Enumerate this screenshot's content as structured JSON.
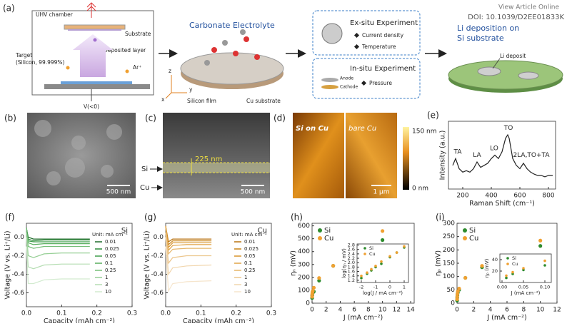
{
  "header": {
    "view_article": "View Article Online",
    "doi": "DOI: 10.1039/D2EE01833K"
  },
  "panel_a": {
    "label": "(a)",
    "uhv": "UHV chamber",
    "substrate": "Substrate",
    "deposited": "Deposited layer",
    "target_1": "Target",
    "target_2": "(Silicon, 99.999%)",
    "ar": "Ar⁺",
    "voltage": "V(<0)",
    "electrolyte": "Carbonate Electrolyte",
    "si_film": "Silicon film",
    "cu_sub": "Cu substrate",
    "exsitu": "Ex-situ Experiment",
    "current": "Current density",
    "temperature": "Temperature",
    "insitu": "In-situ Experiment",
    "anode": "Anode",
    "cathode": "Cathode",
    "pressure": "Pressure",
    "li_title_1": "Li deposition on",
    "li_title_2": "Si substrate",
    "li_deposit": "Li deposit",
    "axis_z": "z",
    "axis_y": "y",
    "axis_x": "x"
  },
  "panel_b": {
    "label": "(b)",
    "scale": "500 nm"
  },
  "panel_c": {
    "label": "(c)",
    "thickness": "225 nm",
    "si": "Si",
    "cu": "Cu",
    "scale": "500 nm"
  },
  "panel_d": {
    "label": "(d)",
    "left": "Si on Cu",
    "right": "bare Cu",
    "scale": "1 μm",
    "cbar_max": "150 nm",
    "cbar_min": "0 nm"
  },
  "chart_data": [
    {
      "type": "line",
      "panel_label": "(e)",
      "xlabel": "Raman Shift (cm⁻¹)",
      "ylabel": "Intensity (a.u.)",
      "color": "#222222",
      "x": [
        130,
        150,
        175,
        200,
        225,
        250,
        275,
        300,
        325,
        350,
        375,
        400,
        425,
        450,
        475,
        500,
        515,
        525,
        550,
        575,
        600,
        625,
        650,
        675,
        700,
        725,
        750,
        775,
        800,
        830
      ],
      "values": [
        0.35,
        0.45,
        0.3,
        0.25,
        0.27,
        0.25,
        0.3,
        0.4,
        0.32,
        0.35,
        0.38,
        0.45,
        0.5,
        0.45,
        0.55,
        0.75,
        0.8,
        0.75,
        0.45,
        0.35,
        0.3,
        0.38,
        0.3,
        0.25,
        0.22,
        0.2,
        0.2,
        0.18,
        0.2,
        0.2
      ],
      "xlim": [
        100,
        850
      ],
      "xticks": [
        200,
        400,
        600,
        800
      ],
      "ylim": [
        0,
        1
      ],
      "annotations": [
        {
          "text": "TA",
          "x": 165,
          "y": 0.55
        },
        {
          "text": "LA",
          "x": 300,
          "y": 0.5
        },
        {
          "text": "LO",
          "x": 420,
          "y": 0.6
        },
        {
          "text": "TO",
          "x": 520,
          "y": 0.9
        },
        {
          "text": "2LA,TO+TA",
          "x": 680,
          "y": 0.5
        }
      ]
    },
    {
      "type": "line",
      "panel_label": "(f)",
      "annotation": "Si",
      "legend": "center right",
      "legend_title": "Unit: mA cm⁻²",
      "xlabel": "Capacity (mAh cm⁻²)",
      "ylabel": "Voltage (V vs. Li⁺/Li)",
      "xlim": [
        0,
        0.3
      ],
      "xticks": [
        {
          "value": 0,
          "label": "0.0"
        },
        0.1,
        0.2,
        0.3
      ],
      "ylim": [
        -0.75,
        0.15
      ],
      "yticks": [
        {
          "value": 0,
          "label": "0.0"
        },
        -0.2,
        -0.4,
        -0.6
      ],
      "series": [
        {
          "name": "0.01",
          "color": "#1f6b2a",
          "x": [
            0,
            0.005,
            0.02,
            0.05,
            0.1,
            0.18
          ],
          "values": [
            0.1,
            0,
            -0.02,
            -0.02,
            -0.02,
            -0.02
          ]
        },
        {
          "name": "0.025",
          "color": "#2e8b3a",
          "x": [
            0,
            0.005,
            0.02,
            0.05,
            0.1,
            0.18
          ],
          "values": [
            0.1,
            -0.02,
            -0.04,
            -0.03,
            -0.03,
            -0.03
          ]
        },
        {
          "name": "0.05",
          "color": "#3f9e4a",
          "x": [
            0,
            0.005,
            0.02,
            0.05,
            0.1,
            0.18
          ],
          "values": [
            0.1,
            -0.04,
            -0.05,
            -0.05,
            -0.05,
            -0.05
          ]
        },
        {
          "name": "0.1",
          "color": "#58ae5e",
          "x": [
            0,
            0.005,
            0.02,
            0.05,
            0.1,
            0.18
          ],
          "values": [
            0.1,
            -0.06,
            -0.08,
            -0.07,
            -0.07,
            -0.07
          ]
        },
        {
          "name": "0.25",
          "color": "#75bf78",
          "x": [
            0,
            0.005,
            0.02,
            0.05,
            0.1,
            0.18
          ],
          "values": [
            0.1,
            -0.1,
            -0.12,
            -0.1,
            -0.1,
            -0.1
          ]
        },
        {
          "name": "1",
          "color": "#96cf95",
          "x": [
            0,
            0.005,
            0.02,
            0.05,
            0.1,
            0.18
          ],
          "values": [
            0.05,
            -0.2,
            -0.22,
            -0.18,
            -0.17,
            -0.17
          ]
        },
        {
          "name": "3",
          "color": "#b6deb3",
          "x": [
            0,
            0.005,
            0.02,
            0.05,
            0.1,
            0.18
          ],
          "values": [
            0,
            -0.32,
            -0.34,
            -0.3,
            -0.29,
            -0.29
          ]
        },
        {
          "name": "10",
          "color": "#d2ebcf",
          "x": [
            0,
            0.005,
            0.02,
            0.05,
            0.1,
            0.18
          ],
          "values": [
            -0.1,
            -0.5,
            -0.5,
            -0.46,
            -0.45,
            -0.45
          ]
        }
      ]
    },
    {
      "type": "line",
      "panel_label": "(g)",
      "annotation": "Cu",
      "legend": "center right",
      "legend_title": "Unit: mA cm⁻²",
      "xlabel": "Capacity (mAh cm⁻²)",
      "ylabel": "Voltage (V vs. Li⁺/Li)",
      "xlim": [
        0,
        0.3
      ],
      "xticks": [
        {
          "value": 0,
          "label": "0.0"
        },
        0.1,
        0.2,
        0.3
      ],
      "ylim": [
        -0.75,
        0.15
      ],
      "yticks": [
        {
          "value": 0,
          "label": "0.0"
        },
        -0.2,
        -0.4,
        -0.6
      ],
      "series": [
        {
          "name": "0.01",
          "color": "#b8720f",
          "x": [
            0,
            0.008,
            0.02,
            0.06,
            0.13
          ],
          "values": [
            0.12,
            -0.05,
            -0.02,
            -0.02,
            -0.02
          ]
        },
        {
          "name": "0.025",
          "color": "#c98216",
          "x": [
            0,
            0.008,
            0.02,
            0.06,
            0.13
          ],
          "values": [
            0.12,
            -0.08,
            -0.04,
            -0.04,
            -0.04
          ]
        },
        {
          "name": "0.05",
          "color": "#d8922a",
          "x": [
            0,
            0.008,
            0.02,
            0.06,
            0.13
          ],
          "values": [
            0.12,
            -0.11,
            -0.06,
            -0.06,
            -0.06
          ]
        },
        {
          "name": "0.1",
          "color": "#e0a447",
          "x": [
            0,
            0.008,
            0.02,
            0.06,
            0.13
          ],
          "values": [
            0.12,
            -0.14,
            -0.09,
            -0.08,
            -0.08
          ]
        },
        {
          "name": "0.25",
          "color": "#e6b569",
          "x": [
            0,
            0.008,
            0.02,
            0.06,
            0.13
          ],
          "values": [
            0.1,
            -0.18,
            -0.13,
            -0.12,
            -0.12
          ]
        },
        {
          "name": "1",
          "color": "#ecc68c",
          "x": [
            0,
            0.008,
            0.02,
            0.06,
            0.13
          ],
          "values": [
            0.05,
            -0.28,
            -0.22,
            -0.2,
            -0.2
          ]
        },
        {
          "name": "3",
          "color": "#f1d6ad",
          "x": [
            0,
            0.008,
            0.02,
            0.06,
            0.13
          ],
          "values": [
            0,
            -0.4,
            -0.33,
            -0.31,
            -0.3
          ]
        },
        {
          "name": "10",
          "color": "#f6e5cc",
          "x": [
            0,
            0.008,
            0.02,
            0.06,
            0.13
          ],
          "values": [
            -0.1,
            -0.58,
            -0.5,
            -0.48,
            -0.47
          ]
        }
      ]
    },
    {
      "type": "scatter",
      "panel_label": "(h)",
      "legend": "upper left",
      "xlabel": "J (mA cm⁻²)",
      "ylabel": "ηₙ (mV)",
      "xlim": [
        0,
        14.5
      ],
      "xticks": [
        0,
        2,
        4,
        6,
        8,
        10,
        12,
        14
      ],
      "ylim": [
        0,
        620
      ],
      "yticks": [
        0,
        100,
        200,
        300,
        400,
        500,
        600
      ],
      "series": [
        {
          "name": "Si",
          "color": "#2d8b2d",
          "x": [
            0.01,
            0.025,
            0.05,
            0.1,
            0.25,
            1,
            3,
            10
          ],
          "values": [
            40,
            60,
            70,
            80,
            90,
            175,
            290,
            490
          ]
        },
        {
          "name": "Cu",
          "color": "#f0a030",
          "x": [
            0.01,
            0.025,
            0.05,
            0.1,
            0.25,
            1,
            3,
            10
          ],
          "values": [
            50,
            70,
            85,
            95,
            120,
            195,
            290,
            560
          ]
        }
      ]
    },
    {
      "type": "scatter",
      "panel_label": "(i)",
      "legend": "upper left",
      "xlabel": "J (mA cm⁻²)",
      "ylabel": "ηₚ (mV)",
      "xlim": [
        0,
        12
      ],
      "xticks": [
        0,
        2,
        4,
        6,
        8,
        10,
        12
      ],
      "ylim": [
        0,
        300
      ],
      "yticks": [
        0,
        50,
        100,
        150,
        200,
        250,
        300
      ],
      "series": [
        {
          "name": "Si",
          "color": "#2d8b2d",
          "x": [
            0.01,
            0.025,
            0.05,
            0.1,
            0.25,
            1,
            3,
            10
          ],
          "values": [
            10,
            20,
            30,
            40,
            50,
            95,
            135,
            215
          ]
        },
        {
          "name": "Cu",
          "color": "#f0a030",
          "x": [
            0.01,
            0.025,
            0.05,
            0.1,
            0.25,
            1,
            3,
            10
          ],
          "values": [
            15,
            25,
            35,
            45,
            55,
            95,
            140,
            235
          ]
        }
      ]
    },
    {
      "type": "scatter",
      "legend": "upper left",
      "xlabel": "log(J / mA cm⁻²)",
      "ylabel": "log(ηₙ / mV)",
      "xlim": [
        -2.3,
        1.3
      ],
      "xticks": [
        -2,
        -1,
        0,
        1
      ],
      "ylim": [
        1.1,
        2.85
      ],
      "yticks": [
        1.2,
        1.4,
        1.6,
        1.8,
        {
          "value": 2,
          "label": "2.0"
        },
        2.2,
        2.4,
        2.6,
        2.8
      ],
      "series": [
        {
          "name": "Si",
          "color": "#2d8b2d",
          "x": [
            -2,
            -1.6,
            -1.3,
            -1,
            -0.6,
            0,
            0.48,
            1
          ],
          "values": [
            1.3,
            1.5,
            1.65,
            1.8,
            1.95,
            2.25,
            2.46,
            2.69
          ]
        },
        {
          "name": "Cu",
          "color": "#f0a030",
          "x": [
            -2,
            -1.6,
            -1.3,
            -1,
            -0.6,
            0,
            0.48,
            1
          ],
          "values": [
            1.4,
            1.55,
            1.7,
            1.85,
            2.05,
            2.29,
            2.46,
            2.74
          ]
        }
      ]
    },
    {
      "type": "scatter",
      "legend": "upper left",
      "xlabel": "J (mA cm⁻²)",
      "ylabel": "ηₚ (mV)",
      "xlim": [
        -0.005,
        0.115
      ],
      "xticks": [
        {
          "value": 0,
          "label": "0.00"
        },
        0.05,
        {
          "value": 0.1,
          "label": "0.10"
        }
      ],
      "ylim": [
        0,
        50
      ],
      "yticks": [
        20,
        40
      ],
      "series": [
        {
          "name": "Si",
          "color": "#2d8b2d",
          "x": [
            0.01,
            0.025,
            0.05,
            0.1
          ],
          "values": [
            8,
            15,
            22,
            30
          ]
        },
        {
          "name": "Cu",
          "color": "#f0a030",
          "x": [
            0.01,
            0.025,
            0.05,
            0.1
          ],
          "values": [
            12,
            18,
            25,
            38
          ]
        }
      ]
    }
  ]
}
